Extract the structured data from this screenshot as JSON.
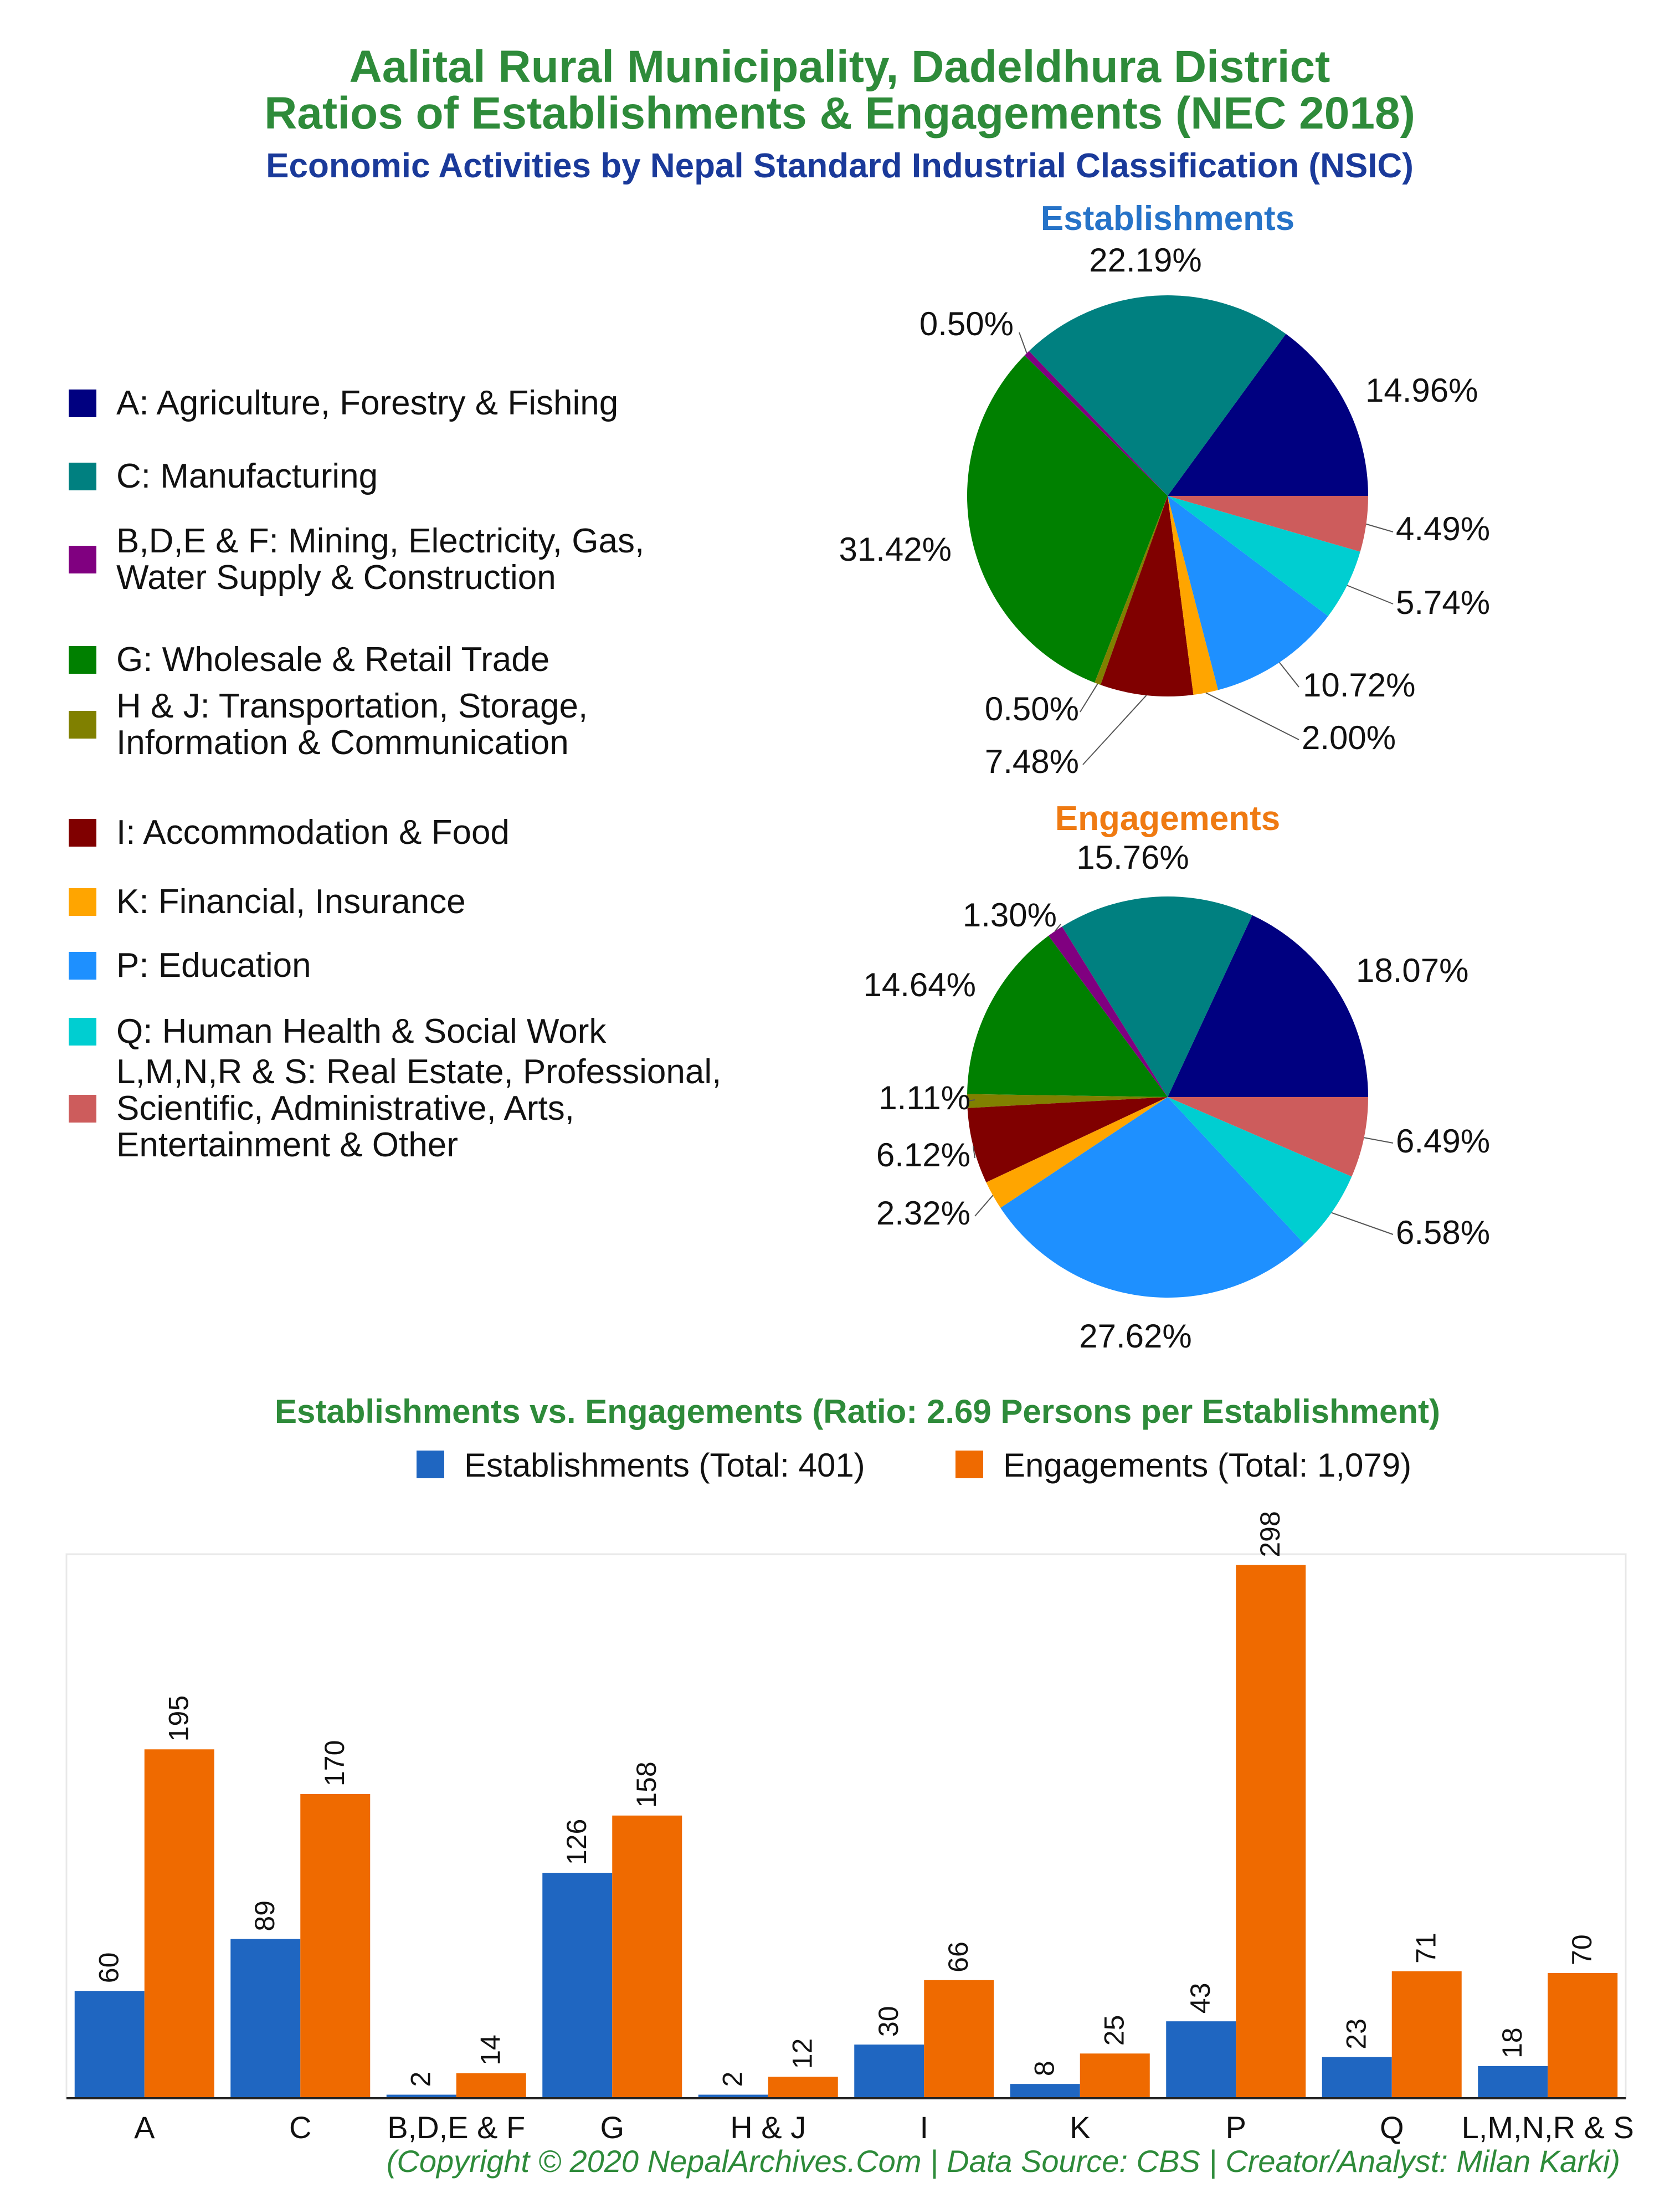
{
  "header": {
    "title_line1": "Aalital Rural Municipality, Dadeldhura District",
    "title_line2": "Ratios of Establishments & Engagements (NEC 2018)",
    "subtitle": "Economic Activities by Nepal Standard Industrial Classification (NSIC)"
  },
  "colors": {
    "title": "#2e8b3a",
    "subtitle": "#1a3a9a",
    "establishments": "#1f66c1",
    "engagements": "#ef6a00",
    "establishments_title": "#2673c8",
    "engagements_title": "#ef7a12"
  },
  "legend": {
    "items": [
      {
        "code": "A",
        "label": "A: Agriculture, Forestry & Fishing",
        "lines": [
          "A: Agriculture, Forestry & Fishing"
        ],
        "color": "#000080"
      },
      {
        "code": "C",
        "label": "C: Manufacturing",
        "lines": [
          "C: Manufacturing"
        ],
        "color": "#008080"
      },
      {
        "code": "BDEF",
        "label": "B,D,E & F: Mining, Electricity, Gas, Water Supply & Construction",
        "lines": [
          "B,D,E & F: Mining, Electricity, Gas,",
          "Water Supply & Construction"
        ],
        "color": "#800080"
      },
      {
        "code": "G",
        "label": "G: Wholesale & Retail Trade",
        "lines": [
          "G: Wholesale & Retail Trade"
        ],
        "color": "#008000"
      },
      {
        "code": "HJ",
        "label": "H & J: Transportation, Storage, Information & Communication",
        "lines": [
          "H & J: Transportation, Storage,",
          "Information & Communication"
        ],
        "color": "#808000"
      },
      {
        "code": "I",
        "label": "I: Accommodation & Food",
        "lines": [
          "I: Accommodation & Food"
        ],
        "color": "#800000"
      },
      {
        "code": "K",
        "label": "K: Financial, Insurance",
        "lines": [
          "K: Financial, Insurance"
        ],
        "color": "#ffa500"
      },
      {
        "code": "P",
        "label": "P: Education",
        "lines": [
          "P: Education"
        ],
        "color": "#1e90ff"
      },
      {
        "code": "Q",
        "label": "Q: Human Health & Social Work",
        "lines": [
          "Q: Human Health & Social Work"
        ],
        "color": "#00ced1"
      },
      {
        "code": "LMNRS",
        "label": "L,M,N,R & S: Real Estate, Professional, Scientific, Administrative, Arts, Entertainment & Other",
        "lines": [
          "L,M,N,R & S: Real Estate, Professional,",
          "Scientific, Administrative, Arts,",
          "Entertainment & Other"
        ],
        "color": "#cd5c5c"
      }
    ]
  },
  "bar_header": {
    "title": "Establishments vs. Engagements (Ratio: 2.69 Persons per Establishment)",
    "legend_establishments": "Establishments (Total: 401)",
    "legend_engagements": "Engagements (Total: 1,079)"
  },
  "footer": {
    "credit": "(Copyright © 2020 NepalArchives.Com | Data Source: CBS | Creator/Analyst: Milan Karki)"
  },
  "chart_data": [
    {
      "type": "pie",
      "title": "Establishments",
      "categories": [
        "A",
        "C",
        "B,D,E & F",
        "G",
        "H & J",
        "I",
        "K",
        "P",
        "Q",
        "L,M,N,R & S"
      ],
      "values": [
        14.96,
        22.19,
        0.5,
        31.42,
        0.5,
        7.48,
        2.0,
        10.72,
        5.74,
        4.49
      ],
      "labels": [
        "14.96%",
        "22.19%",
        "0.50%",
        "31.42%",
        "0.50%",
        "7.48%",
        "2.00%",
        "10.72%",
        "5.74%",
        "4.49%"
      ]
    },
    {
      "type": "pie",
      "title": "Engagements",
      "categories": [
        "A",
        "C",
        "B,D,E & F",
        "G",
        "H & J",
        "I",
        "K",
        "P",
        "Q",
        "L,M,N,R & S"
      ],
      "values": [
        18.07,
        15.76,
        1.3,
        14.64,
        1.11,
        6.12,
        2.32,
        27.62,
        6.58,
        6.49
      ],
      "labels": [
        "18.07%",
        "15.76%",
        "1.30%",
        "14.64%",
        "1.11%",
        "6.12%",
        "2.32%",
        "27.62%",
        "6.58%",
        "6.49%"
      ]
    },
    {
      "type": "bar",
      "title": "Establishments vs. Engagements (Ratio: 2.69 Persons per Establishment)",
      "categories": [
        "A",
        "C",
        "B,D,E & F",
        "G",
        "H & J",
        "I",
        "K",
        "P",
        "Q",
        "L,M,N,R & S"
      ],
      "series": [
        {
          "name": "Establishments (Total: 401)",
          "values": [
            60,
            89,
            2,
            126,
            2,
            30,
            8,
            43,
            23,
            18
          ]
        },
        {
          "name": "Engagements (Total: 1,079)",
          "values": [
            195,
            170,
            14,
            158,
            12,
            66,
            25,
            298,
            71,
            70
          ]
        }
      ],
      "ylim": [
        0,
        298
      ],
      "grid": false,
      "legend_position": "top"
    }
  ]
}
